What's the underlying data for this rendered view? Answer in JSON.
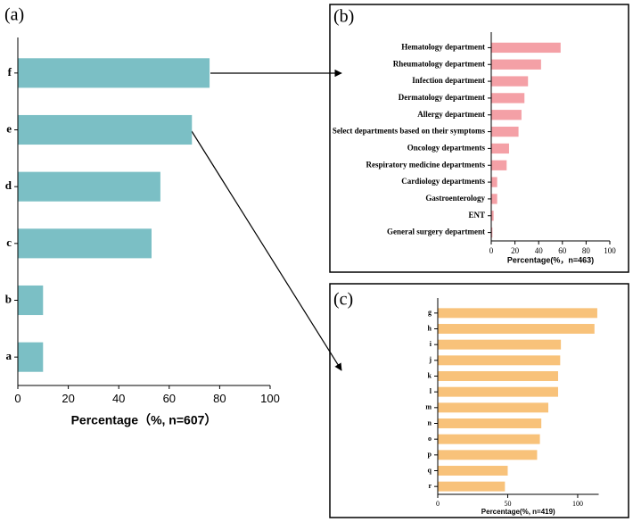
{
  "chart_data": [
    {
      "type": "hbar",
      "panel": "(a)",
      "xlabel": "Percentage（%, n=607）",
      "color": "#7bbfc5",
      "categories": [
        "f",
        "e",
        "d",
        "c",
        "b",
        "a"
      ],
      "values": [
        76,
        69,
        56.5,
        53,
        10,
        10
      ],
      "xlim": [
        0,
        100
      ],
      "xticks": [
        0,
        20,
        40,
        60,
        80,
        100
      ]
    },
    {
      "type": "hbar",
      "panel": "(b)",
      "xlabel": "Percentage(%，n=463)",
      "color": "#f4a0a6",
      "categories": [
        "Hematology department",
        "Rheumatology department",
        "Infection department",
        "Dermatology department",
        "Allergy department",
        "Select departments based on their symptoms",
        "Oncology departments",
        "Respiratory medicine departments",
        "Cardiology departments",
        "Gastroenterology",
        "ENT",
        "General surgery department"
      ],
      "values": [
        58.5,
        42,
        31,
        28,
        25.5,
        23,
        15,
        13,
        5,
        5,
        2,
        1
      ],
      "xlim": [
        0,
        100
      ],
      "xticks": [
        0,
        20,
        40,
        60,
        80,
        100
      ]
    },
    {
      "type": "hbar",
      "panel": "(c)",
      "xlabel": "Percentage(%, n=419)",
      "color": "#f8c27a",
      "categories": [
        "g",
        "h",
        "i",
        "j",
        "k",
        "l",
        "m",
        "n",
        "o",
        "p",
        "q",
        "r"
      ],
      "values": [
        114,
        112,
        88,
        87.5,
        86,
        86,
        79,
        74,
        73,
        71,
        50,
        48
      ],
      "xlim": [
        0,
        115
      ],
      "xticks": [
        0,
        50,
        100
      ]
    }
  ]
}
